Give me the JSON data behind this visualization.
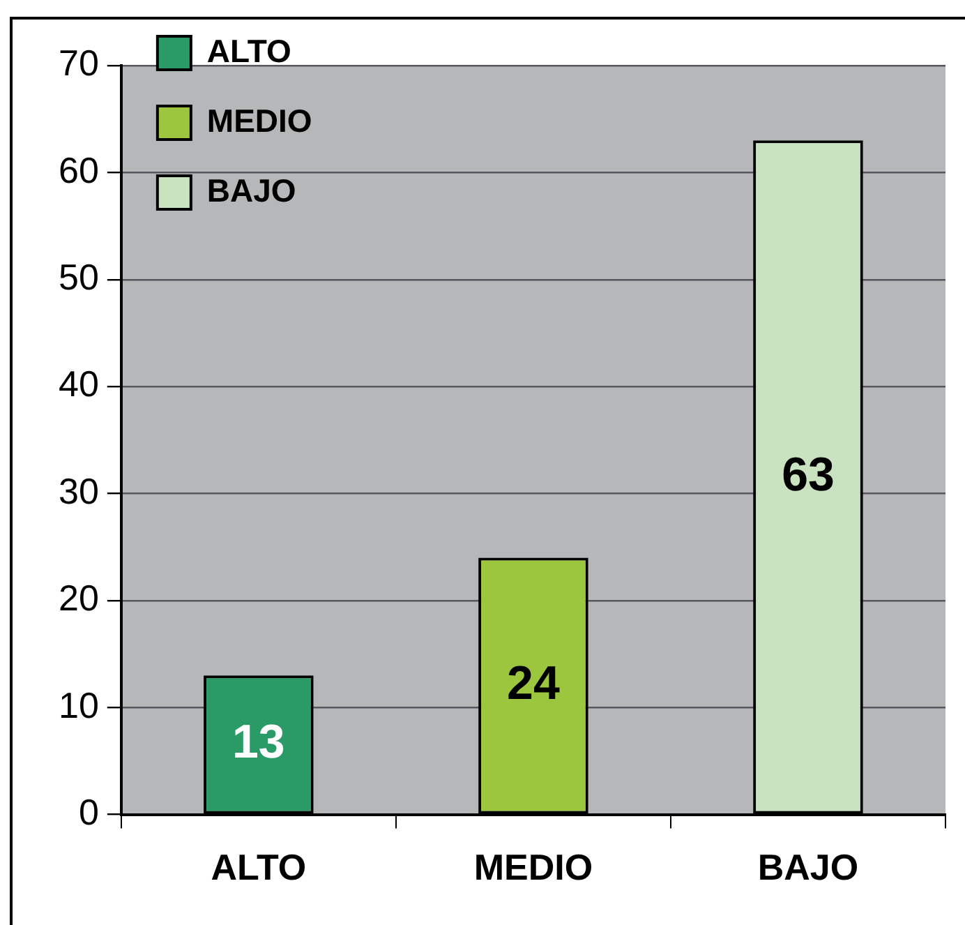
{
  "chart_data": {
    "type": "bar",
    "categories": [
      "ALTO",
      "MEDIO",
      "BAJO"
    ],
    "series": [
      {
        "name": "ALTO",
        "color": "#2a9a66",
        "values": [
          13,
          null,
          null
        ]
      },
      {
        "name": "MEDIO",
        "color": "#9cc63e",
        "values": [
          null,
          24,
          null
        ]
      },
      {
        "name": "BAJO",
        "color": "#c9e3c1",
        "values": [
          null,
          null,
          63
        ]
      }
    ],
    "ylim": [
      0,
      70
    ],
    "yticks": [
      0,
      10,
      20,
      30,
      40,
      50,
      60,
      70
    ],
    "grid": "y",
    "legend": "top left",
    "data_labels": true
  }
}
